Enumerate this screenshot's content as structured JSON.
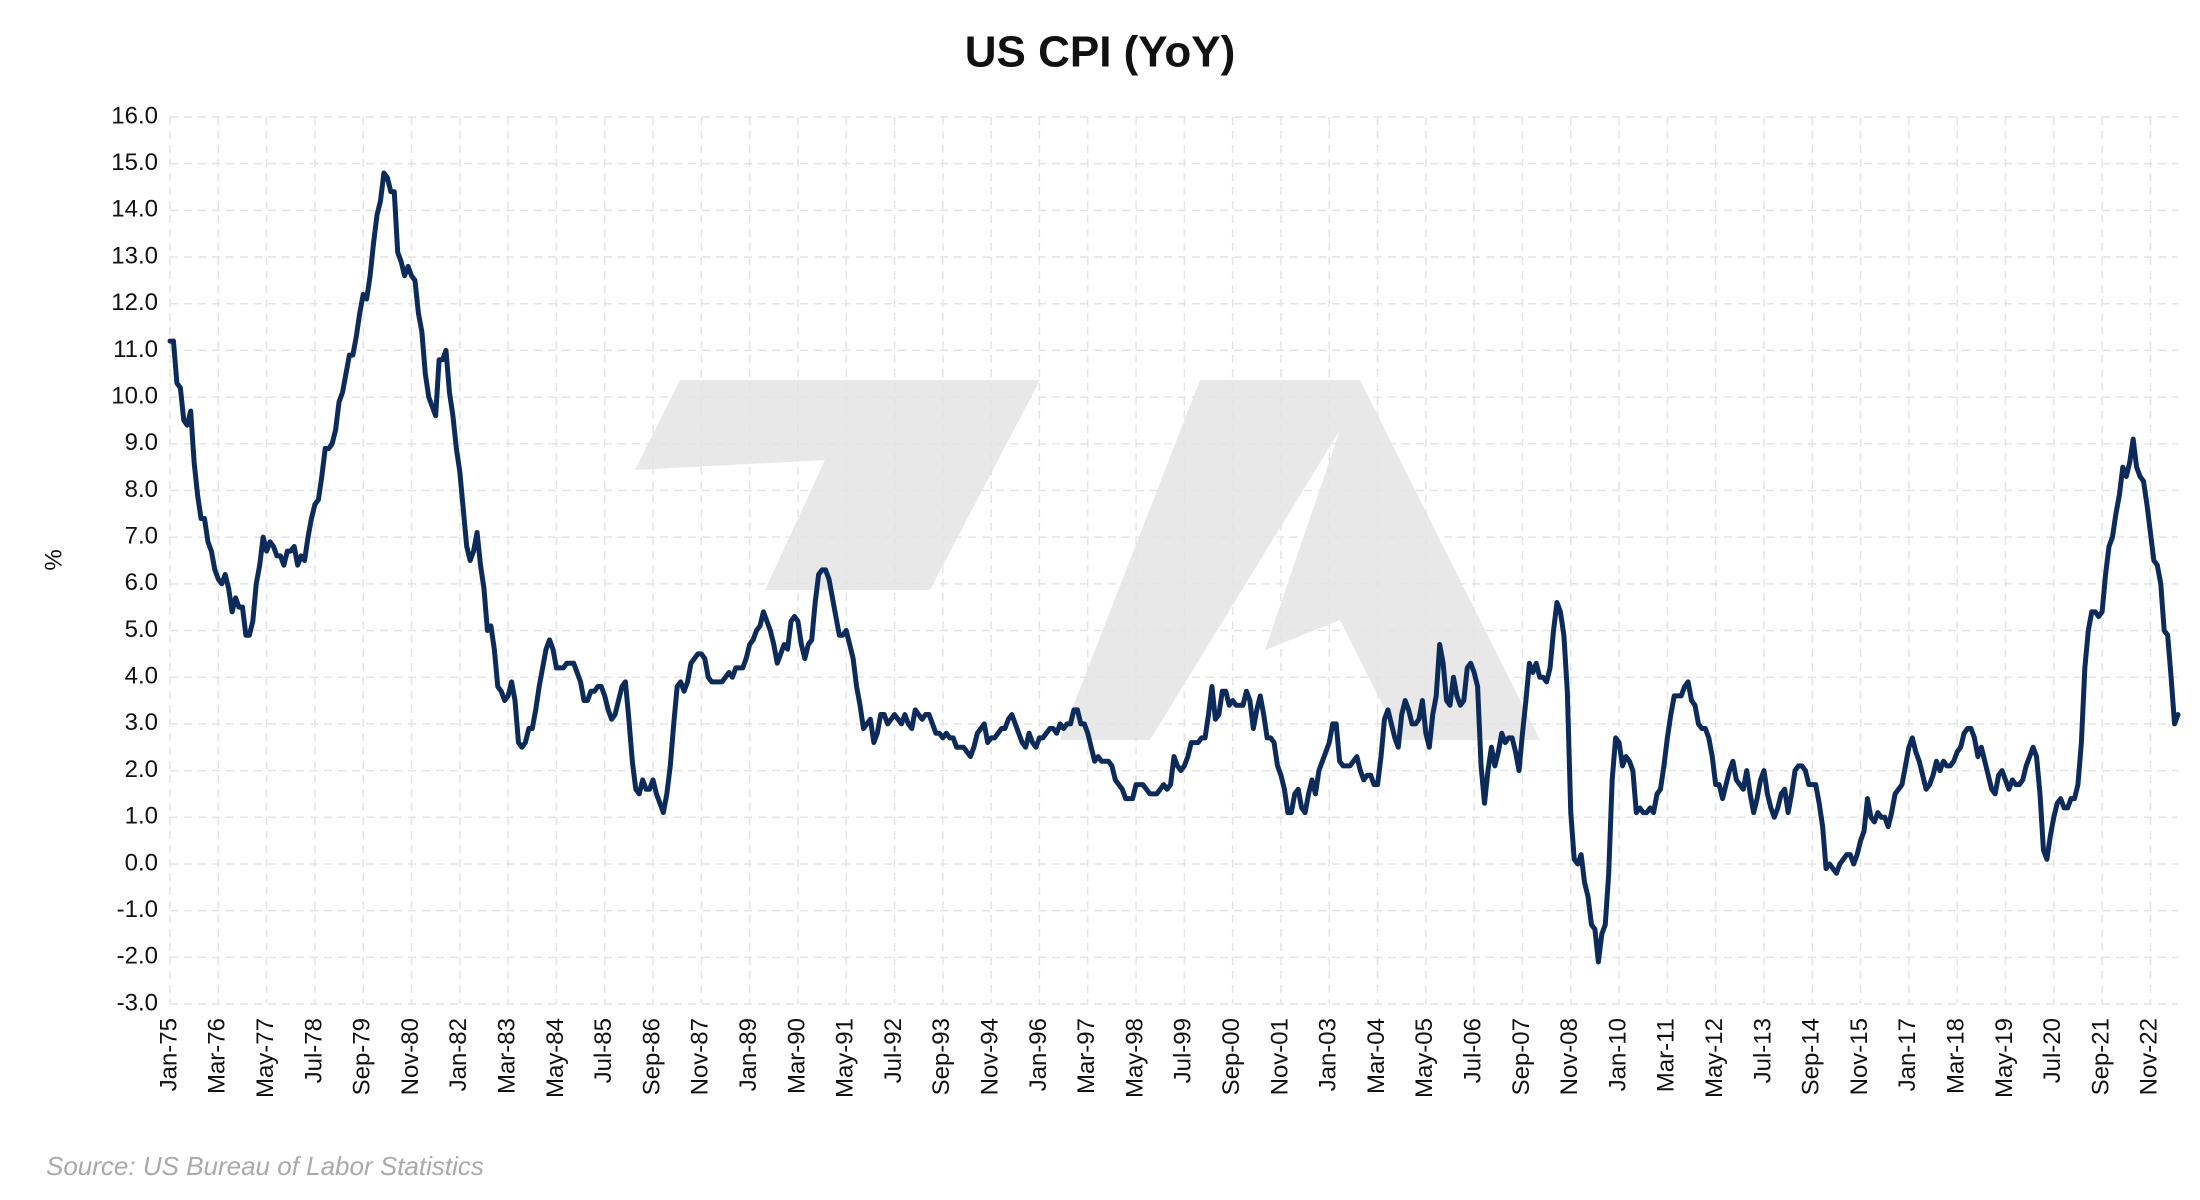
{
  "chart_data": {
    "type": "line",
    "title": "US CPI (YoY)",
    "y_label": "%",
    "source": "Source: US Bureau of Labor Statistics",
    "color": "#0d2b5a",
    "grid": true,
    "ylim": [
      -3,
      16
    ],
    "yticks": [
      {
        "value": -3,
        "label": "-3.0"
      },
      {
        "value": -2,
        "label": "-2.0"
      },
      {
        "value": -1,
        "label": "-1.0"
      },
      {
        "value": 0,
        "label": "0.0"
      },
      {
        "value": 1,
        "label": "1.0"
      },
      {
        "value": 2,
        "label": "2.0"
      },
      {
        "value": 3,
        "label": "3.0"
      },
      {
        "value": 4,
        "label": "4.0"
      },
      {
        "value": 5,
        "label": "5.0"
      },
      {
        "value": 6,
        "label": "6.0"
      },
      {
        "value": 7,
        "label": "7.0"
      },
      {
        "value": 8,
        "label": "8.0"
      },
      {
        "value": 9,
        "label": "9.0"
      },
      {
        "value": 10,
        "label": "10.0"
      },
      {
        "value": 11,
        "label": "11.0"
      },
      {
        "value": 12,
        "label": "12.0"
      },
      {
        "value": 13,
        "label": "13.0"
      },
      {
        "value": 14,
        "label": "14.0"
      },
      {
        "value": 15,
        "label": "15.0"
      },
      {
        "value": 16,
        "label": "16.0"
      }
    ],
    "categories": [
      "Jan-75",
      null,
      null,
      null,
      null,
      null,
      null,
      null,
      null,
      null,
      null,
      null,
      null,
      null,
      "Mar-76",
      null,
      null,
      null,
      null,
      null,
      null,
      null,
      null,
      null,
      null,
      null,
      null,
      null,
      "May-77",
      null,
      null,
      null,
      null,
      null,
      null,
      null,
      null,
      null,
      null,
      null,
      null,
      null,
      "Jul-78",
      null,
      null,
      null,
      null,
      null,
      null,
      null,
      null,
      null,
      null,
      null,
      null,
      null,
      "Sep-79",
      null,
      null,
      null,
      null,
      null,
      null,
      null,
      null,
      null,
      null,
      null,
      null,
      null,
      "Nov-80",
      null,
      null,
      null,
      null,
      null,
      null,
      null,
      null,
      null,
      null,
      null,
      null,
      null,
      "Jan-82",
      null,
      null,
      null,
      null,
      null,
      null,
      null,
      null,
      null,
      null,
      null,
      null,
      null,
      "Mar-83",
      null,
      null,
      null,
      null,
      null,
      null,
      null,
      null,
      null,
      null,
      null,
      null,
      null,
      "May-84",
      null,
      null,
      null,
      null,
      null,
      null,
      null,
      null,
      null,
      null,
      null,
      null,
      null,
      "Jul-85",
      null,
      null,
      null,
      null,
      null,
      null,
      null,
      null,
      null,
      null,
      null,
      null,
      null,
      "Sep-86",
      null,
      null,
      null,
      null,
      null,
      null,
      null,
      null,
      null,
      null,
      null,
      null,
      null,
      "Nov-87",
      null,
      null,
      null,
      null,
      null,
      null,
      null,
      null,
      null,
      null,
      null,
      null,
      null,
      "Jan-89",
      null,
      null,
      null,
      null,
      null,
      null,
      null,
      null,
      null,
      null,
      null,
      null,
      null,
      "Mar-90",
      null,
      null,
      null,
      null,
      null,
      null,
      null,
      null,
      null,
      null,
      null,
      null,
      null,
      "May-91",
      null,
      null,
      null,
      null,
      null,
      null,
      null,
      null,
      null,
      null,
      null,
      null,
      null,
      "Jul-92",
      null,
      null,
      null,
      null,
      null,
      null,
      null,
      null,
      null,
      null,
      null,
      null,
      null,
      "Sep-93",
      null,
      null,
      null,
      null,
      null,
      null,
      null,
      null,
      null,
      null,
      null,
      null,
      null,
      "Nov-94",
      null,
      null,
      null,
      null,
      null,
      null,
      null,
      null,
      null,
      null,
      null,
      null,
      null,
      "Jan-96",
      null,
      null,
      null,
      null,
      null,
      null,
      null,
      null,
      null,
      null,
      null,
      null,
      null,
      "Mar-97",
      null,
      null,
      null,
      null,
      null,
      null,
      null,
      null,
      null,
      null,
      null,
      null,
      null,
      "May-98",
      null,
      null,
      null,
      null,
      null,
      null,
      null,
      null,
      null,
      null,
      null,
      null,
      null,
      "Jul-99",
      null,
      null,
      null,
      null,
      null,
      null,
      null,
      null,
      null,
      null,
      null,
      null,
      null,
      "Sep-00",
      null,
      null,
      null,
      null,
      null,
      null,
      null,
      null,
      null,
      null,
      null,
      null,
      null,
      "Nov-01",
      null,
      null,
      null,
      null,
      null,
      null,
      null,
      null,
      null,
      null,
      null,
      null,
      null,
      "Jan-03",
      null,
      null,
      null,
      null,
      null,
      null,
      null,
      null,
      null,
      null,
      null,
      null,
      null,
      "Mar-04",
      null,
      null,
      null,
      null,
      null,
      null,
      null,
      null,
      null,
      null,
      null,
      null,
      null,
      "May-05",
      null,
      null,
      null,
      null,
      null,
      null,
      null,
      null,
      null,
      null,
      null,
      null,
      null,
      "Jul-06",
      null,
      null,
      null,
      null,
      null,
      null,
      null,
      null,
      null,
      null,
      null,
      null,
      null,
      "Sep-07",
      null,
      null,
      null,
      null,
      null,
      null,
      null,
      null,
      null,
      null,
      null,
      null,
      null,
      "Nov-08",
      null,
      null,
      null,
      null,
      null,
      null,
      null,
      null,
      null,
      null,
      null,
      null,
      null,
      "Jan-10",
      null,
      null,
      null,
      null,
      null,
      null,
      null,
      null,
      null,
      null,
      null,
      null,
      null,
      "Mar-11",
      null,
      null,
      null,
      null,
      null,
      null,
      null,
      null,
      null,
      null,
      null,
      null,
      null,
      "May-12",
      null,
      null,
      null,
      null,
      null,
      null,
      null,
      null,
      null,
      null,
      null,
      null,
      null,
      "Jul-13",
      null,
      null,
      null,
      null,
      null,
      null,
      null,
      null,
      null,
      null,
      null,
      null,
      null,
      "Sep-14",
      null,
      null,
      null,
      null,
      null,
      null,
      null,
      null,
      null,
      null,
      null,
      null,
      null,
      "Nov-15",
      null,
      null,
      null,
      null,
      null,
      null,
      null,
      null,
      null,
      null,
      null,
      null,
      null,
      "Jan-17",
      null,
      null,
      null,
      null,
      null,
      null,
      null,
      null,
      null,
      null,
      null,
      null,
      null,
      "Mar-18",
      null,
      null,
      null,
      null,
      null,
      null,
      null,
      null,
      null,
      null,
      null,
      null,
      null,
      "May-19",
      null,
      null,
      null,
      null,
      null,
      null,
      null,
      null,
      null,
      null,
      null,
      null,
      null,
      "Jul-20",
      null,
      null,
      null,
      null,
      null,
      null,
      null,
      null,
      null,
      null,
      null,
      null,
      null,
      "Sep-21",
      null,
      null,
      null,
      null,
      null,
      null,
      null,
      null,
      null,
      null,
      null,
      null,
      null,
      "Nov-22",
      null,
      null,
      null,
      null,
      null,
      null,
      null,
      null
    ],
    "values": [
      11.2,
      11.2,
      10.3,
      10.2,
      9.5,
      9.4,
      9.7,
      8.6,
      7.9,
      7.4,
      7.4,
      6.9,
      6.7,
      6.3,
      6.1,
      6.0,
      6.2,
      5.9,
      5.4,
      5.7,
      5.5,
      5.5,
      4.9,
      4.9,
      5.2,
      6.0,
      6.4,
      7.0,
      6.7,
      6.9,
      6.8,
      6.6,
      6.6,
      6.4,
      6.7,
      6.7,
      6.8,
      6.4,
      6.6,
      6.5,
      7.0,
      7.4,
      7.7,
      7.8,
      8.3,
      8.9,
      8.9,
      9.0,
      9.3,
      9.9,
      10.1,
      10.5,
      10.9,
      10.9,
      11.3,
      11.8,
      12.2,
      12.1,
      12.6,
      13.3,
      13.9,
      14.2,
      14.8,
      14.7,
      14.4,
      14.4,
      13.1,
      12.9,
      12.6,
      12.8,
      12.6,
      12.5,
      11.8,
      11.4,
      10.5,
      10.0,
      9.8,
      9.6,
      10.8,
      10.8,
      11.0,
      10.1,
      9.6,
      8.9,
      8.4,
      7.6,
      6.8,
      6.5,
      6.7,
      7.1,
      6.4,
      5.9,
      5.0,
      5.1,
      4.6,
      3.8,
      3.7,
      3.5,
      3.6,
      3.9,
      3.5,
      2.6,
      2.5,
      2.6,
      2.9,
      2.9,
      3.3,
      3.8,
      4.2,
      4.6,
      4.8,
      4.6,
      4.2,
      4.2,
      4.2,
      4.3,
      4.3,
      4.3,
      4.1,
      3.9,
      3.5,
      3.5,
      3.7,
      3.7,
      3.8,
      3.8,
      3.6,
      3.3,
      3.1,
      3.2,
      3.5,
      3.8,
      3.9,
      3.1,
      2.2,
      1.6,
      1.5,
      1.8,
      1.6,
      1.6,
      1.8,
      1.5,
      1.3,
      1.1,
      1.5,
      2.1,
      3.0,
      3.8,
      3.9,
      3.7,
      3.9,
      4.3,
      4.4,
      4.5,
      4.5,
      4.4,
      4.0,
      3.9,
      3.9,
      3.9,
      3.9,
      4.0,
      4.1,
      4.0,
      4.2,
      4.2,
      4.2,
      4.4,
      4.7,
      4.8,
      5.0,
      5.1,
      5.4,
      5.2,
      5.0,
      4.7,
      4.3,
      4.5,
      4.7,
      4.6,
      5.2,
      5.3,
      5.2,
      4.7,
      4.4,
      4.7,
      4.8,
      5.6,
      6.2,
      6.3,
      6.3,
      6.1,
      5.7,
      5.3,
      4.9,
      4.9,
      5.0,
      4.7,
      4.4,
      3.8,
      3.4,
      2.9,
      3.0,
      3.1,
      2.6,
      2.8,
      3.2,
      3.2,
      3.0,
      3.1,
      3.2,
      3.1,
      3.0,
      3.2,
      3.0,
      2.9,
      3.3,
      3.2,
      3.1,
      3.2,
      3.2,
      3.0,
      2.8,
      2.8,
      2.7,
      2.8,
      2.7,
      2.7,
      2.5,
      2.5,
      2.5,
      2.4,
      2.3,
      2.5,
      2.8,
      2.9,
      3.0,
      2.6,
      2.7,
      2.7,
      2.8,
      2.9,
      2.9,
      3.1,
      3.2,
      3.0,
      2.8,
      2.6,
      2.5,
      2.8,
      2.6,
      2.5,
      2.7,
      2.7,
      2.8,
      2.9,
      2.9,
      2.8,
      3.0,
      2.9,
      3.0,
      3.0,
      3.3,
      3.3,
      3.0,
      3.0,
      2.8,
      2.5,
      2.2,
      2.3,
      2.2,
      2.2,
      2.2,
      2.1,
      1.8,
      1.7,
      1.6,
      1.4,
      1.4,
      1.4,
      1.7,
      1.7,
      1.7,
      1.6,
      1.5,
      1.5,
      1.5,
      1.6,
      1.7,
      1.6,
      1.7,
      2.3,
      2.1,
      2.0,
      2.1,
      2.3,
      2.6,
      2.6,
      2.6,
      2.7,
      2.7,
      3.2,
      3.8,
      3.1,
      3.2,
      3.7,
      3.7,
      3.4,
      3.5,
      3.4,
      3.4,
      3.4,
      3.7,
      3.5,
      2.9,
      3.3,
      3.6,
      3.2,
      2.7,
      2.7,
      2.6,
      2.1,
      1.9,
      1.6,
      1.1,
      1.1,
      1.5,
      1.6,
      1.2,
      1.1,
      1.5,
      1.8,
      1.5,
      2.0,
      2.2,
      2.4,
      2.6,
      3.0,
      3.0,
      2.2,
      2.1,
      2.1,
      2.1,
      2.2,
      2.3,
      2.0,
      1.8,
      1.9,
      1.9,
      1.7,
      1.7,
      2.3,
      3.1,
      3.3,
      3.0,
      2.7,
      2.5,
      3.2,
      3.5,
      3.3,
      3.0,
      3.0,
      3.1,
      3.5,
      2.8,
      2.5,
      3.2,
      3.6,
      4.7,
      4.3,
      3.5,
      3.4,
      4.0,
      3.6,
      3.4,
      3.5,
      4.2,
      4.3,
      4.1,
      3.8,
      2.1,
      1.3,
      2.0,
      2.5,
      2.1,
      2.4,
      2.8,
      2.6,
      2.7,
      2.7,
      2.4,
      2.0,
      2.8,
      3.5,
      4.3,
      4.1,
      4.3,
      4.0,
      4.0,
      3.9,
      4.2,
      5.0,
      5.6,
      5.4,
      4.9,
      3.7,
      1.1,
      0.1,
      0.0,
      0.2,
      -0.4,
      -0.7,
      -1.3,
      -1.4,
      -2.1,
      -1.5,
      -1.3,
      -0.2,
      1.8,
      2.7,
      2.6,
      2.1,
      2.3,
      2.2,
      2.0,
      1.1,
      1.2,
      1.1,
      1.1,
      1.2,
      1.1,
      1.5,
      1.6,
      2.1,
      2.7,
      3.2,
      3.6,
      3.6,
      3.6,
      3.8,
      3.9,
      3.5,
      3.4,
      3.0,
      2.9,
      2.9,
      2.7,
      2.3,
      1.7,
      1.7,
      1.4,
      1.7,
      2.0,
      2.2,
      1.8,
      1.7,
      1.6,
      2.0,
      1.5,
      1.1,
      1.4,
      1.8,
      2.0,
      1.5,
      1.2,
      1.0,
      1.2,
      1.5,
      1.6,
      1.1,
      1.5,
      2.0,
      2.1,
      2.1,
      2.0,
      1.7,
      1.7,
      1.7,
      1.3,
      0.8,
      -0.1,
      0.0,
      -0.1,
      -0.2,
      0.0,
      0.1,
      0.2,
      0.2,
      0.0,
      0.2,
      0.5,
      0.7,
      1.4,
      1.0,
      0.9,
      1.1,
      1.0,
      1.0,
      0.8,
      1.1,
      1.5,
      1.6,
      1.7,
      2.1,
      2.5,
      2.7,
      2.4,
      2.2,
      1.9,
      1.6,
      1.7,
      1.9,
      2.2,
      2.0,
      2.2,
      2.1,
      2.1,
      2.2,
      2.4,
      2.5,
      2.8,
      2.9,
      2.9,
      2.7,
      2.3,
      2.5,
      2.2,
      1.9,
      1.6,
      1.5,
      1.9,
      2.0,
      1.8,
      1.6,
      1.8,
      1.7,
      1.7,
      1.8,
      2.1,
      2.3,
      2.5,
      2.3,
      1.5,
      0.3,
      0.1,
      0.6,
      1.0,
      1.3,
      1.4,
      1.2,
      1.2,
      1.4,
      1.4,
      1.7,
      2.6,
      4.2,
      5.0,
      5.4,
      5.4,
      5.3,
      5.4,
      6.2,
      6.8,
      7.0,
      7.5,
      7.9,
      8.5,
      8.3,
      8.6,
      9.1,
      8.5,
      8.3,
      8.2,
      7.7,
      7.1,
      6.5,
      6.4,
      6.0,
      5.0,
      4.9,
      4.0,
      3.0,
      3.2
    ]
  }
}
